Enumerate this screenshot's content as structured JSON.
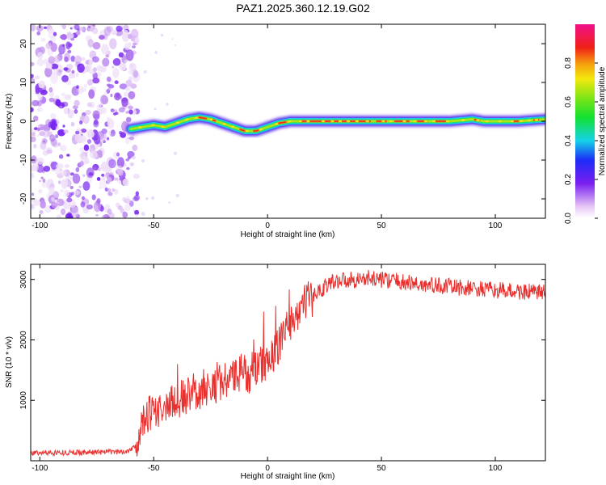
{
  "chart_data": [
    {
      "type": "heatmap",
      "title": "PAZ1.2025.360.12.19.G02",
      "xlabel": "Height of straight line (km)",
      "ylabel": "Frequency (Hz)",
      "xlim": [
        -104,
        122
      ],
      "ylim": [
        -25,
        25
      ],
      "xticks": [
        -100,
        -50,
        0,
        50,
        100
      ],
      "yticks": [
        -20,
        -10,
        0,
        10,
        20
      ],
      "colorbar": {
        "label": "Normalized spectral amplitude",
        "range": [
          0,
          1
        ],
        "ticks": [
          0.0,
          0.2,
          0.4,
          0.6,
          0.8
        ]
      },
      "noise_region_x": [
        -104,
        -60
      ],
      "ridge_frequency_profile": {
        "x": [
          -60,
          -55,
          -50,
          -45,
          -40,
          -35,
          -30,
          -25,
          -20,
          -15,
          -10,
          -5,
          0,
          5,
          10,
          15,
          20,
          40,
          60,
          80,
          90,
          95,
          100,
          110,
          122
        ],
        "y": [
          -2,
          -1.5,
          -1,
          -1.5,
          -0.5,
          0.5,
          1,
          0.5,
          -0.5,
          -1.5,
          -2.5,
          -2.5,
          -1.5,
          -0.5,
          0,
          0,
          0,
          0,
          0,
          0,
          0.5,
          0,
          0,
          0,
          0.5
        ]
      }
    },
    {
      "type": "line",
      "xlabel": "Height of straight line (km)",
      "ylabel": "SNR (10 * v/v)",
      "xlim": [
        -104,
        122
      ],
      "ylim": [
        0,
        3250
      ],
      "xticks": [
        -100,
        -50,
        0,
        50,
        100
      ],
      "yticks": [
        1000,
        2000,
        3000
      ],
      "series": [
        {
          "name": "SNR",
          "color": "#e8302e",
          "x": [
            -104,
            -90,
            -80,
            -70,
            -62,
            -58,
            -56,
            -54,
            -52,
            -50,
            -48,
            -46,
            -44,
            -42,
            -40,
            -38,
            -36,
            -34,
            -32,
            -30,
            -28,
            -26,
            -24,
            -22,
            -20,
            -18,
            -16,
            -14,
            -12,
            -10,
            -8,
            -6,
            -4,
            -2,
            0,
            2,
            4,
            6,
            8,
            10,
            12,
            14,
            16,
            18,
            20,
            22,
            24,
            26,
            28,
            30,
            35,
            40,
            45,
            50,
            55,
            60,
            65,
            70,
            75,
            80,
            85,
            90,
            95,
            100,
            105,
            110,
            115,
            122
          ],
          "y": [
            130,
            135,
            140,
            145,
            150,
            250,
            500,
            700,
            800,
            850,
            800,
            850,
            900,
            1000,
            950,
            1050,
            1000,
            1150,
            1200,
            1100,
            1250,
            1150,
            1300,
            1250,
            1350,
            1300,
            1400,
            1350,
            1450,
            1500,
            1400,
            1550,
            1500,
            1650,
            1550,
            1750,
            1850,
            2000,
            2150,
            2300,
            2400,
            2500,
            2600,
            2650,
            2700,
            2800,
            2850,
            2900,
            2950,
            2980,
            3000,
            3000,
            3020,
            3000,
            2980,
            2950,
            2930,
            2900,
            2900,
            2880,
            2860,
            2850,
            2830,
            2820,
            2810,
            2800,
            2790,
            2780
          ]
        }
      ]
    }
  ]
}
